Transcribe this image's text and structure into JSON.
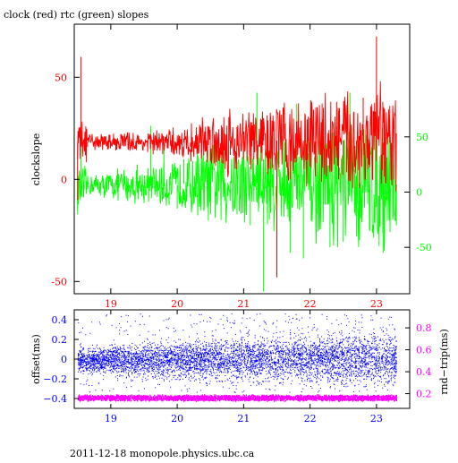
{
  "chart_data": [
    {
      "type": "line",
      "title": "clock (red) rtc (green) slopes",
      "ylabel": "clockslope",
      "xlim": [
        18.45,
        23.5
      ],
      "ylim": [
        -56,
        76
      ],
      "y2lim": [
        -92,
        152
      ],
      "x_ticks": [
        19,
        20,
        21,
        22,
        23
      ],
      "y_ticks": [
        -50,
        0,
        50
      ],
      "y2_ticks": [
        -50,
        0,
        50
      ],
      "grid": false,
      "series": [
        {
          "name": "clock",
          "color": "#ff0000",
          "axis": "left",
          "x": [
            18.5,
            18.55,
            18.6,
            18.65,
            18.7,
            18.8,
            18.9,
            19.0,
            19.1,
            19.2,
            19.3,
            19.4,
            19.5,
            19.6,
            19.7,
            19.8,
            19.9,
            20.0,
            20.1,
            20.2,
            20.3,
            20.4,
            20.5,
            20.6,
            20.7,
            20.8,
            20.9,
            21.0,
            21.1,
            21.2,
            21.3,
            21.4,
            21.5,
            21.6,
            21.7,
            21.8,
            21.9,
            22.0,
            22.1,
            22.2,
            22.3,
            22.4,
            22.5,
            22.6,
            22.7,
            22.8,
            22.9,
            23.0,
            23.1,
            23.2,
            23.3
          ],
          "values": [
            -10,
            60,
            20,
            16,
            18,
            17,
            19,
            16,
            18,
            20,
            15,
            19,
            17,
            22,
            14,
            18,
            19,
            17,
            20,
            16,
            21,
            18,
            19,
            15,
            24,
            12,
            22,
            18,
            25,
            10,
            30,
            5,
            -48,
            35,
            0,
            28,
            12,
            30,
            8,
            35,
            15,
            38,
            2,
            32,
            10,
            40,
            6,
            70,
            12,
            36,
            18
          ],
          "band": [
            [
              6,
              30
            ],
            [
              14,
              23
            ],
            [
              14,
              23
            ],
            [
              14,
              23
            ],
            [
              13,
              24
            ],
            [
              12,
              24
            ],
            [
              13,
              23
            ],
            [
              12,
              24
            ],
            [
              11,
              25
            ],
            [
              11,
              25
            ],
            [
              10,
              26
            ],
            [
              9,
              27
            ],
            [
              8,
              28
            ],
            [
              5,
              32
            ],
            [
              2,
              36
            ],
            [
              2,
              36
            ],
            [
              0,
              38
            ],
            [
              3,
              35
            ],
            [
              -2,
              40
            ],
            [
              2,
              36
            ],
            [
              0,
              38
            ],
            [
              -4,
              42
            ],
            [
              -3,
              42
            ],
            [
              -2,
              40
            ],
            [
              -4,
              42
            ],
            [
              -6,
              44
            ],
            [
              -8,
              46
            ],
            [
              -5,
              44
            ],
            [
              -10,
              48
            ],
            [
              -8,
              46
            ],
            [
              -12,
              48
            ],
            [
              -10,
              46
            ],
            [
              -14,
              50
            ],
            [
              -12,
              48
            ]
          ]
        },
        {
          "name": "rtc",
          "color": "#00ff00",
          "axis": "right",
          "x": [
            18.5,
            18.55,
            18.6,
            18.7,
            18.8,
            18.9,
            19.0,
            19.1,
            19.2,
            19.3,
            19.4,
            19.5,
            19.6,
            19.7,
            19.8,
            19.9,
            20.0,
            20.1,
            20.2,
            20.3,
            20.4,
            20.5,
            20.6,
            20.7,
            20.8,
            20.9,
            21.0,
            21.1,
            21.2,
            21.3,
            21.4,
            21.5,
            21.6,
            21.7,
            21.8,
            21.9,
            22.0,
            22.1,
            22.2,
            22.3,
            22.4,
            22.5,
            22.6,
            22.7,
            22.8,
            22.9,
            23.0,
            23.1,
            23.2,
            23.3
          ],
          "values": [
            -20,
            40,
            10,
            0,
            5,
            -5,
            15,
            0,
            20,
            5,
            25,
            -10,
            60,
            0,
            40,
            10,
            -15,
            30,
            -5,
            45,
            0,
            20,
            -10,
            50,
            10,
            -20,
            40,
            -30,
            90,
            -90,
            60,
            -40,
            70,
            -55,
            80,
            -60,
            55,
            -20,
            65,
            -50,
            75,
            -45,
            90,
            -40,
            60,
            -35,
            85,
            -55,
            70,
            -30
          ],
          "band": [
            [
              -20,
              25
            ],
            [
              -5,
              18
            ],
            [
              -6,
              18
            ],
            [
              -8,
              20
            ],
            [
              -10,
              22
            ],
            [
              -10,
              22
            ],
            [
              -12,
              24
            ],
            [
              -12,
              24
            ],
            [
              -14,
              26
            ],
            [
              -16,
              28
            ],
            [
              -18,
              30
            ],
            [
              -20,
              35
            ],
            [
              -25,
              40
            ],
            [
              -30,
              45
            ],
            [
              -32,
              48
            ],
            [
              -35,
              50
            ],
            [
              -28,
              45
            ],
            [
              -38,
              55
            ],
            [
              -30,
              48
            ],
            [
              -35,
              52
            ],
            [
              -40,
              58
            ],
            [
              -38,
              56
            ],
            [
              -35,
              52
            ],
            [
              -40,
              60
            ],
            [
              -45,
              62
            ],
            [
              -50,
              65
            ],
            [
              -48,
              64
            ],
            [
              -55,
              70
            ],
            [
              -52,
              68
            ],
            [
              -58,
              72
            ],
            [
              -55,
              70
            ],
            [
              -60,
              74
            ],
            [
              -58,
              72
            ],
            [
              -62,
              76
            ]
          ]
        }
      ]
    },
    {
      "type": "scatter",
      "xlim": [
        18.45,
        23.5
      ],
      "ylim": [
        -0.5,
        0.5
      ],
      "y2lim": [
        0.066,
        0.964
      ],
      "x_ticks": [
        19,
        20,
        21,
        22,
        23
      ],
      "ylabel": "offset(ms)",
      "y2label": "rnd−trip(ms)",
      "y_ticks": [
        -0.4,
        -0.2,
        0,
        0.2,
        0.4
      ],
      "y_tick_labels": [
        "−0.4",
        "−0.2",
        "0",
        "0.2",
        "0.4"
      ],
      "y2_ticks": [
        0.2,
        0.4,
        0.6,
        0.8
      ],
      "grid": false,
      "series": [
        {
          "name": "offset",
          "color": "#0000ff",
          "axis": "left",
          "band": [
            [
              -0.16,
              0.14
            ],
            [
              -0.2,
              0.18
            ],
            [
              -0.22,
              0.2
            ],
            [
              -0.24,
              0.22
            ],
            [
              -0.25,
              0.24
            ],
            [
              -0.26,
              0.26
            ],
            [
              -0.28,
              0.28
            ],
            [
              -0.3,
              0.3
            ],
            [
              -0.32,
              0.32
            ],
            [
              -0.34,
              0.34
            ]
          ],
          "outlier_range": [
            -0.34,
            0.46
          ]
        },
        {
          "name": "rnd-trip",
          "color": "#ff00ff",
          "axis": "right",
          "level": 0.16,
          "spread": 0.03
        }
      ]
    }
  ],
  "footer": "2011-12-18  monopole.physics.ubc.ca",
  "colors": {
    "clock": "#ff0000",
    "rtc": "#00ff00",
    "left_axis_top": "#ff0000",
    "right_axis_top": "#00ff00",
    "left_axis_bottom": "#0000ff",
    "right_axis_bottom": "#ff00ff"
  }
}
